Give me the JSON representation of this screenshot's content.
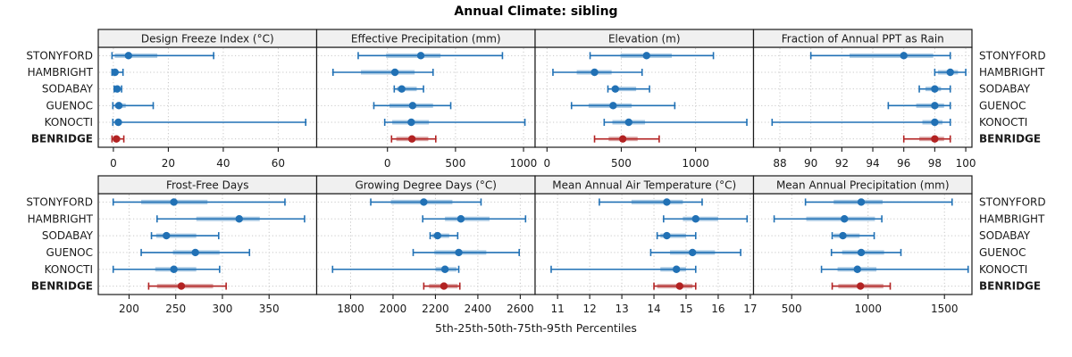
{
  "title": "Annual Climate: sibling",
  "caption": "5th-25th-50th-75th-95th Percentiles",
  "colors": {
    "series": "#2171b5",
    "series_band": "#a9c9e3",
    "highlight": "#b22222",
    "highlight_band": "#dcaaaa",
    "panel_header_bg": "#f0f0f0",
    "panel_border": "#1a1a1a",
    "grid": "#c8c8c8",
    "text": "#1a1a1a"
  },
  "chart_data": {
    "type": "dot-whisker-trellis",
    "layout": "2 rows x 4 cols, shared station y-axis, free x scales",
    "grid": "dotted",
    "legend_position": "none",
    "percentiles": [
      "5th",
      "25th",
      "50th",
      "75th",
      "95th"
    ],
    "stations": [
      "STONYFORD",
      "HAMBRIGHT",
      "SODABAY",
      "GUENOC",
      "KONOCTI",
      "BENRIDGE"
    ],
    "highlight_station": "BENRIDGE",
    "panels": [
      {
        "title": "Design Freeze Index (°C)",
        "xlim": [
          -5.5,
          74
        ],
        "ticks": [
          0,
          20,
          40,
          60
        ],
        "tick_labels": [
          "0",
          "20",
          "40",
          "60"
        ],
        "values": {
          "STONYFORD": [
            -0.5,
            0.5,
            5.5,
            16,
            36.5
          ],
          "HAMBRIGHT": [
            -0.5,
            0,
            0.6,
            1.5,
            3.5
          ],
          "SODABAY": [
            0.3,
            0.8,
            1.4,
            2.2,
            3
          ],
          "GUENOC": [
            -0.2,
            0.5,
            2,
            4.5,
            14.5
          ],
          "KONOCTI": [
            -0.2,
            0.5,
            1.8,
            3,
            70
          ],
          "BENRIDGE": [
            -0.5,
            0.2,
            1.1,
            2.5,
            3.8
          ]
        }
      },
      {
        "title": "Effective Precipitation (mm)",
        "xlim": [
          -520,
          1085
        ],
        "ticks": [
          0,
          500,
          1000
        ],
        "tick_labels": [
          "0",
          "500",
          "1000"
        ],
        "values": {
          "STONYFORD": [
            -215,
            -10,
            245,
            390,
            845
          ],
          "HAMBRIGHT": [
            -400,
            -195,
            55,
            200,
            335
          ],
          "SODABAY": [
            50,
            70,
            105,
            215,
            265
          ],
          "GUENOC": [
            -100,
            15,
            185,
            335,
            465
          ],
          "KONOCTI": [
            -20,
            35,
            175,
            305,
            1010
          ],
          "BENRIDGE": [
            30,
            65,
            180,
            300,
            355
          ]
        }
      },
      {
        "title": "Elevation (m)",
        "xlim": [
          -80,
          1390
        ],
        "ticks": [
          0,
          500,
          1000
        ],
        "tick_labels": [
          "0",
          "500",
          "1000"
        ],
        "values": {
          "STONYFORD": [
            290,
            495,
            670,
            840,
            1120
          ],
          "HAMBRIGHT": [
            40,
            200,
            320,
            435,
            640
          ],
          "SODABAY": [
            410,
            435,
            460,
            600,
            690
          ],
          "GUENOC": [
            165,
            280,
            445,
            570,
            860
          ],
          "KONOCTI": [
            385,
            440,
            550,
            660,
            1345
          ],
          "BENRIDGE": [
            320,
            415,
            510,
            610,
            755
          ]
        }
      },
      {
        "title": "Fraction of Annual PPT as Rain",
        "xlim": [
          86.3,
          100.4
        ],
        "ticks": [
          88,
          90,
          92,
          94,
          96,
          98,
          100
        ],
        "tick_labels": [
          "88",
          "90",
          "92",
          "94",
          "96",
          "98",
          "100"
        ],
        "values": {
          "STONYFORD": [
            90,
            92.5,
            96,
            97.9,
            99
          ],
          "HAMBRIGHT": [
            98,
            98.2,
            99,
            99.5,
            100
          ],
          "SODABAY": [
            97,
            97.4,
            98,
            98.4,
            99
          ],
          "GUENOC": [
            95,
            96.8,
            98,
            98.6,
            99
          ],
          "KONOCTI": [
            87.5,
            97.2,
            98,
            98.5,
            99
          ],
          "BENRIDGE": [
            96,
            97,
            98,
            98.6,
            99
          ]
        }
      },
      {
        "title": "Frost-Free Days",
        "xlim": [
          167,
          401
        ],
        "ticks": [
          200,
          250,
          300,
          350
        ],
        "tick_labels": [
          "200",
          "250",
          "300",
          "350"
        ],
        "values": {
          "STONYFORD": [
            183,
            213,
            248,
            284,
            367
          ],
          "HAMBRIGHT": [
            230,
            272,
            318,
            340,
            388
          ],
          "SODABAY": [
            224,
            229,
            240,
            272,
            296
          ],
          "GUENOC": [
            213,
            247,
            271,
            297,
            329
          ],
          "KONOCTI": [
            183,
            228,
            248,
            272,
            297
          ],
          "BENRIDGE": [
            221,
            230,
            256,
            290,
            304
          ]
        }
      },
      {
        "title": "Growing Degree Days (°C)",
        "xlim": [
          1640,
          2670
        ],
        "ticks": [
          1800,
          2000,
          2200,
          2400,
          2600
        ],
        "tick_labels": [
          "1800",
          "2000",
          "2200",
          "2400",
          "2600"
        ],
        "values": {
          "STONYFORD": [
            1895,
            1990,
            2145,
            2280,
            2415
          ],
          "HAMBRIGHT": [
            2140,
            2245,
            2320,
            2455,
            2625
          ],
          "SODABAY": [
            2175,
            2185,
            2210,
            2265,
            2305
          ],
          "GUENOC": [
            2095,
            2195,
            2310,
            2440,
            2595
          ],
          "KONOCTI": [
            1715,
            2200,
            2245,
            2300,
            2310
          ],
          "BENRIDGE": [
            2145,
            2170,
            2240,
            2305,
            2315
          ]
        }
      },
      {
        "title": "Mean Annual Air Temperature (°C)",
        "xlim": [
          10.3,
          17.1
        ],
        "ticks": [
          11,
          12,
          13,
          14,
          15,
          16,
          17
        ],
        "tick_labels": [
          "11",
          "12",
          "13",
          "14",
          "15",
          "16",
          "17"
        ],
        "values": {
          "STONYFORD": [
            12.3,
            13.3,
            14.4,
            14.9,
            15.5
          ],
          "HAMBRIGHT": [
            14.3,
            14.9,
            15.3,
            16.0,
            16.9
          ],
          "SODABAY": [
            14.1,
            14.2,
            14.4,
            15.0,
            15.3
          ],
          "GUENOC": [
            13.9,
            14.5,
            15.2,
            15.9,
            16.7
          ],
          "KONOCTI": [
            10.8,
            14.2,
            14.7,
            15.0,
            15.3
          ],
          "BENRIDGE": [
            14.0,
            14.1,
            14.8,
            15.2,
            15.3
          ]
        }
      },
      {
        "title": "Mean Annual Precipitation (mm)",
        "xlim": [
          250,
          1680
        ],
        "ticks": [
          500,
          1000,
          1500
        ],
        "tick_labels": [
          "500",
          "1000",
          "1500"
        ],
        "values": {
          "STONYFORD": [
            590,
            775,
            955,
            1095,
            1550
          ],
          "HAMBRIGHT": [
            385,
            595,
            845,
            1045,
            1090
          ],
          "SODABAY": [
            765,
            775,
            835,
            945,
            1040
          ],
          "GUENOC": [
            760,
            830,
            955,
            1105,
            1215
          ],
          "KONOCTI": [
            695,
            800,
            930,
            1055,
            1655
          ],
          "BENRIDGE": [
            765,
            805,
            950,
            1100,
            1145
          ]
        }
      }
    ]
  }
}
